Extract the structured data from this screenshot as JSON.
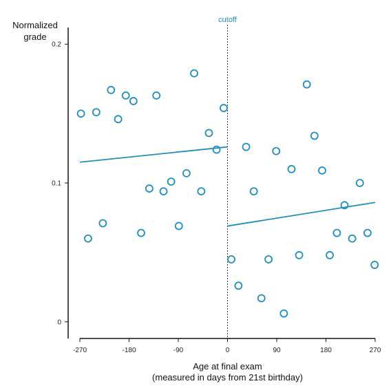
{
  "chart_data": {
    "type": "scatter",
    "title": "",
    "ylabel_lines": [
      "Normalized",
      "grade"
    ],
    "xlabel_lines": [
      "Age at final exam",
      "(measured in days from 21st birthday)"
    ],
    "xlim": [
      -270,
      270
    ],
    "ylim": [
      -0.012,
      0.213
    ],
    "x_ticks": [
      -270,
      -180,
      -90,
      0,
      90,
      180,
      270
    ],
    "x_tick_labels": [
      "-270",
      "-180",
      "-90",
      "0",
      "90",
      "180",
      "270"
    ],
    "y_ticks": [
      0,
      0.1,
      0.2
    ],
    "y_tick_labels": [
      "0",
      "0.1",
      "0.2"
    ],
    "grid": false,
    "color": "#1a8fc1",
    "cutoff": {
      "x": 0,
      "label": "cutoff"
    },
    "points": [
      {
        "x": -268,
        "y": 0.15
      },
      {
        "x": -255,
        "y": 0.06
      },
      {
        "x": -240,
        "y": 0.151
      },
      {
        "x": -228,
        "y": 0.071
      },
      {
        "x": -213,
        "y": 0.167
      },
      {
        "x": -200,
        "y": 0.146
      },
      {
        "x": -186,
        "y": 0.163
      },
      {
        "x": -172,
        "y": 0.159
      },
      {
        "x": -158,
        "y": 0.064
      },
      {
        "x": -143,
        "y": 0.096
      },
      {
        "x": -130,
        "y": 0.163
      },
      {
        "x": -117,
        "y": 0.094
      },
      {
        "x": -103,
        "y": 0.101
      },
      {
        "x": -89,
        "y": 0.069
      },
      {
        "x": -75,
        "y": 0.107
      },
      {
        "x": -61,
        "y": 0.179
      },
      {
        "x": -48,
        "y": 0.094
      },
      {
        "x": -34,
        "y": 0.136
      },
      {
        "x": -20,
        "y": 0.124
      },
      {
        "x": -7,
        "y": 0.154
      },
      {
        "x": 7,
        "y": 0.045
      },
      {
        "x": 20,
        "y": 0.026
      },
      {
        "x": 34,
        "y": 0.126
      },
      {
        "x": 48,
        "y": 0.094
      },
      {
        "x": 62,
        "y": 0.017
      },
      {
        "x": 75,
        "y": 0.045
      },
      {
        "x": 89,
        "y": 0.123
      },
      {
        "x": 103,
        "y": 0.006
      },
      {
        "x": 117,
        "y": 0.11
      },
      {
        "x": 131,
        "y": 0.048
      },
      {
        "x": 145,
        "y": 0.171
      },
      {
        "x": 159,
        "y": 0.134
      },
      {
        "x": 173,
        "y": 0.109
      },
      {
        "x": 187,
        "y": 0.048
      },
      {
        "x": 200,
        "y": 0.064
      },
      {
        "x": 214,
        "y": 0.084
      },
      {
        "x": 228,
        "y": 0.06
      },
      {
        "x": 242,
        "y": 0.1
      },
      {
        "x": 256,
        "y": 0.064
      },
      {
        "x": 269,
        "y": 0.041
      }
    ],
    "fit_lines": [
      {
        "from": {
          "x": -270,
          "y": 0.115
        },
        "to": {
          "x": 0,
          "y": 0.126
        }
      },
      {
        "from": {
          "x": 0,
          "y": 0.069
        },
        "to": {
          "x": 270,
          "y": 0.086
        }
      }
    ]
  }
}
